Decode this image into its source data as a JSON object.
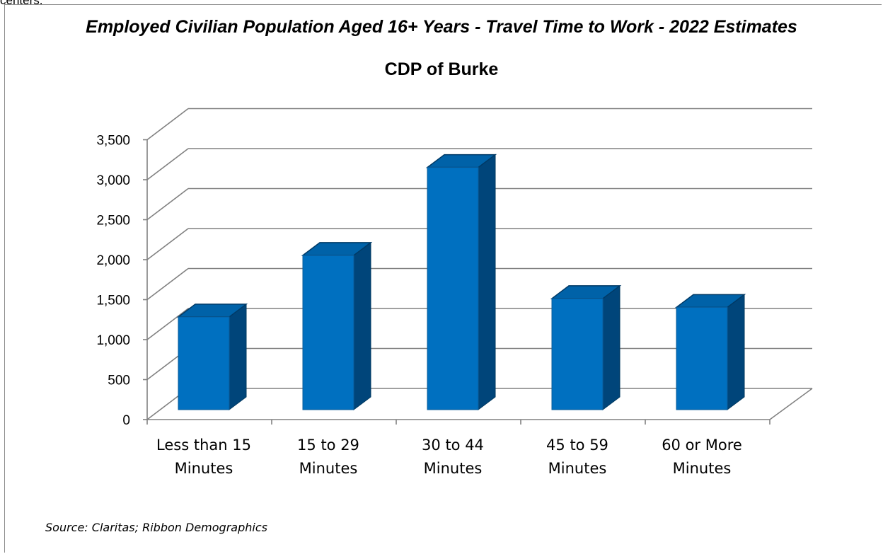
{
  "top_fragment": "centers.",
  "chart_data": {
    "type": "bar",
    "title": "Employed Civilian Population Aged 16+ Years - Travel Time to Work - 2022 Estimates",
    "subtitle": "CDP of Burke",
    "categories": [
      [
        "Less than 15",
        "Minutes"
      ],
      [
        "15 to 29",
        "Minutes"
      ],
      [
        "30 to 44",
        "Minutes"
      ],
      [
        "45 to 59",
        "Minutes"
      ],
      [
        "60 or More",
        "Minutes"
      ]
    ],
    "values": [
      1160,
      1930,
      3030,
      1390,
      1280
    ],
    "ylim": [
      0,
      3500
    ],
    "yticks": [
      "0",
      "500",
      "1,000",
      "1,500",
      "2,000",
      "2,500",
      "3,000",
      "3,500"
    ],
    "grid": true,
    "style": "3d-column",
    "colors": {
      "bar_front": "#0070c0",
      "bar_side": "#00457a",
      "bar_top": "#0062a8",
      "grid": "#808080"
    }
  },
  "source": "Source: Claritas; Ribbon Demographics"
}
